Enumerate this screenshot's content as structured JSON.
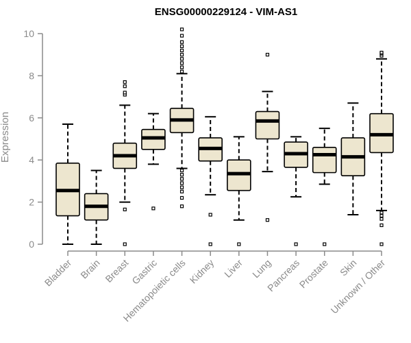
{
  "chart_data": {
    "type": "boxplot",
    "title": "ENSG00000229124 - VIM-AS1",
    "xlabel": "",
    "ylabel": "Expression",
    "ylim": [
      0,
      10
    ],
    "yticks": [
      0,
      2,
      4,
      6,
      8,
      10
    ],
    "grid": false,
    "colors": {
      "box_fill": "#ede6cf",
      "box_stroke": "#000000",
      "median": "#000000",
      "axis": "#8a8a8a"
    },
    "categories": [
      "Bladder",
      "Brain",
      "Breast",
      "Gastric",
      "Hematopoietic cells",
      "Kidney",
      "Liver",
      "Lung",
      "Pancreas",
      "Prostate",
      "Skin",
      "Unknown / Other"
    ],
    "boxes": [
      {
        "min": 0.0,
        "q1": 1.35,
        "median": 2.55,
        "q3": 3.85,
        "max": 5.7,
        "outliers": []
      },
      {
        "min": 0.0,
        "q1": 1.15,
        "median": 1.8,
        "q3": 2.4,
        "max": 3.5,
        "outliers": []
      },
      {
        "min": 2.0,
        "q1": 3.6,
        "median": 4.2,
        "q3": 4.8,
        "max": 6.6,
        "outliers": [
          0.0,
          1.65,
          7.1,
          7.2,
          7.5,
          7.7
        ]
      },
      {
        "min": 3.8,
        "q1": 4.5,
        "median": 5.05,
        "q3": 5.45,
        "max": 6.2,
        "outliers": [
          1.7
        ]
      },
      {
        "min": 3.6,
        "q1": 5.3,
        "median": 5.9,
        "q3": 6.45,
        "max": 8.1,
        "outliers": [
          1.8,
          2.2,
          2.5,
          2.7,
          2.9,
          3.1,
          3.3,
          3.5,
          8.2,
          8.4,
          8.6,
          8.8,
          9.0,
          9.2,
          9.4,
          9.6,
          9.9,
          10.2
        ]
      },
      {
        "min": 2.35,
        "q1": 3.95,
        "median": 4.55,
        "q3": 5.05,
        "max": 6.05,
        "outliers": [
          0.0,
          1.4
        ]
      },
      {
        "min": 1.15,
        "q1": 2.55,
        "median": 3.35,
        "q3": 4.0,
        "max": 5.1,
        "outliers": [
          0.0
        ]
      },
      {
        "min": 3.45,
        "q1": 5.0,
        "median": 5.85,
        "q3": 6.3,
        "max": 7.25,
        "outliers": [
          1.15,
          9.0
        ]
      },
      {
        "min": 2.25,
        "q1": 3.65,
        "median": 4.3,
        "q3": 4.85,
        "max": 5.1,
        "outliers": [
          0.0
        ]
      },
      {
        "min": 2.85,
        "q1": 3.4,
        "median": 4.25,
        "q3": 4.6,
        "max": 5.5,
        "outliers": [
          0.0
        ]
      },
      {
        "min": 1.4,
        "q1": 3.25,
        "median": 4.15,
        "q3": 5.05,
        "max": 6.7,
        "outliers": []
      },
      {
        "min": 1.6,
        "q1": 4.35,
        "median": 5.2,
        "q3": 6.2,
        "max": 8.8,
        "outliers": [
          0.0,
          0.9,
          1.2,
          1.35,
          1.5,
          8.95,
          9.05,
          9.1
        ]
      }
    ]
  }
}
